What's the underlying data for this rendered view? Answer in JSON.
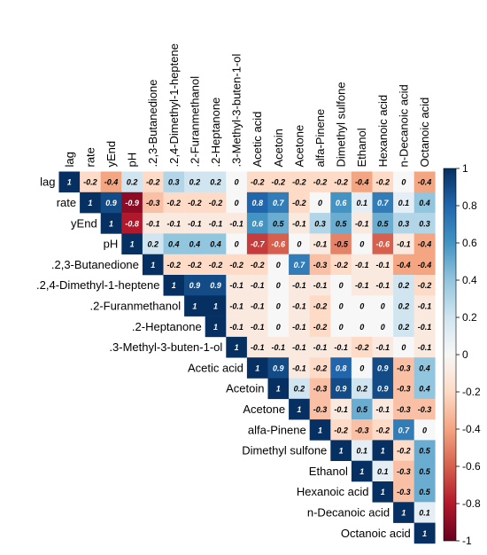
{
  "chart_data": {
    "type": "heatmap",
    "title": "",
    "variables": [
      "lag",
      "rate",
      "yEnd",
      "pH",
      ".2,3-Butanedione",
      ".2,4-Dimethyl-1-heptene",
      ".2-Furanmethanol",
      ".2-Heptanone",
      ".3-Methyl-3-buten-1-ol",
      "Acetic acid",
      "Acetoin",
      "Acetone",
      "alfa-Pinene",
      "Dimethyl sulfone",
      "Ethanol",
      "Hexanoic acid",
      "n-Decanoic acid",
      "Octanoic acid"
    ],
    "matrix": [
      [
        1,
        -0.2,
        -0.4,
        0.2,
        -0.2,
        0.3,
        0.2,
        0.2,
        0,
        -0.2,
        -0.2,
        -0.2,
        -0.2,
        -0.2,
        -0.4,
        -0.2,
        0,
        -0.4
      ],
      [
        null,
        1,
        0.9,
        -0.9,
        -0.3,
        -0.2,
        -0.2,
        -0.2,
        0,
        0.8,
        0.7,
        -0.2,
        0,
        0.6,
        0.1,
        0.7,
        0.1,
        0.4
      ],
      [
        null,
        null,
        1,
        -0.8,
        -0.1,
        -0.1,
        -0.1,
        -0.1,
        -0.1,
        0.6,
        0.5,
        -0.1,
        0.3,
        0.5,
        -0.1,
        0.5,
        0.3,
        0.3
      ],
      [
        null,
        null,
        null,
        1,
        0.2,
        0.4,
        0.4,
        0.4,
        0,
        -0.7,
        -0.6,
        0,
        -0.1,
        -0.5,
        0,
        -0.6,
        -0.1,
        -0.4
      ],
      [
        null,
        null,
        null,
        null,
        1,
        -0.2,
        -0.2,
        -0.2,
        -0.2,
        -0.2,
        0,
        0.7,
        -0.3,
        -0.2,
        -0.1,
        -0.1,
        -0.4,
        -0.4
      ],
      [
        null,
        null,
        null,
        null,
        null,
        1,
        0.9,
        0.9,
        -0.1,
        -0.1,
        0,
        -0.1,
        -0.1,
        0,
        -0.1,
        -0.1,
        0.2,
        -0.2
      ],
      [
        null,
        null,
        null,
        null,
        null,
        null,
        1,
        1,
        -0.1,
        -0.1,
        0,
        -0.1,
        -0.2,
        0,
        0,
        0,
        0.2,
        -0.1
      ],
      [
        null,
        null,
        null,
        null,
        null,
        null,
        null,
        1,
        -0.1,
        -0.1,
        0,
        -0.1,
        -0.2,
        0,
        0,
        0,
        0.2,
        -0.1
      ],
      [
        null,
        null,
        null,
        null,
        null,
        null,
        null,
        null,
        1,
        -0.1,
        -0.1,
        -0.1,
        -0.1,
        -0.1,
        -0.2,
        -0.1,
        0,
        -0.1
      ],
      [
        null,
        null,
        null,
        null,
        null,
        null,
        null,
        null,
        null,
        1,
        0.9,
        -0.1,
        -0.2,
        0.8,
        0,
        0.9,
        -0.3,
        0.4
      ],
      [
        null,
        null,
        null,
        null,
        null,
        null,
        null,
        null,
        null,
        null,
        1,
        0.2,
        -0.3,
        0.9,
        0.2,
        0.9,
        -0.3,
        0.4
      ],
      [
        null,
        null,
        null,
        null,
        null,
        null,
        null,
        null,
        null,
        null,
        null,
        1,
        -0.3,
        -0.1,
        0.5,
        -0.1,
        -0.3,
        -0.3
      ],
      [
        null,
        null,
        null,
        null,
        null,
        null,
        null,
        null,
        null,
        null,
        null,
        null,
        1,
        -0.2,
        -0.3,
        -0.2,
        0.7,
        0
      ],
      [
        null,
        null,
        null,
        null,
        null,
        null,
        null,
        null,
        null,
        null,
        null,
        null,
        null,
        1,
        0.1,
        1,
        -0.2,
        0.5
      ],
      [
        null,
        null,
        null,
        null,
        null,
        null,
        null,
        null,
        null,
        null,
        null,
        null,
        null,
        null,
        1,
        0.1,
        -0.3,
        0.5
      ],
      [
        null,
        null,
        null,
        null,
        null,
        null,
        null,
        null,
        null,
        null,
        null,
        null,
        null,
        null,
        null,
        1,
        -0.3,
        0.5
      ],
      [
        null,
        null,
        null,
        null,
        null,
        null,
        null,
        null,
        null,
        null,
        null,
        null,
        null,
        null,
        null,
        null,
        1,
        0.1
      ],
      [
        null,
        null,
        null,
        null,
        null,
        null,
        null,
        null,
        null,
        null,
        null,
        null,
        null,
        null,
        null,
        null,
        null,
        1
      ]
    ],
    "colorbar": {
      "range": [
        -1,
        1
      ],
      "ticks": [
        1,
        0.8,
        0.6,
        0.4,
        0.2,
        0,
        -0.2,
        -0.4,
        -0.6,
        -0.8,
        -1
      ],
      "tick_labels": [
        "1",
        "0.8",
        "0.6",
        "0.4",
        "0.2",
        "0",
        "-0.2",
        "-0.4",
        "-0.6",
        "-0.8",
        "-1"
      ],
      "colors": {
        "neg": "#67001f",
        "mid": "#f7f7f7",
        "pos": "#053061"
      }
    }
  }
}
